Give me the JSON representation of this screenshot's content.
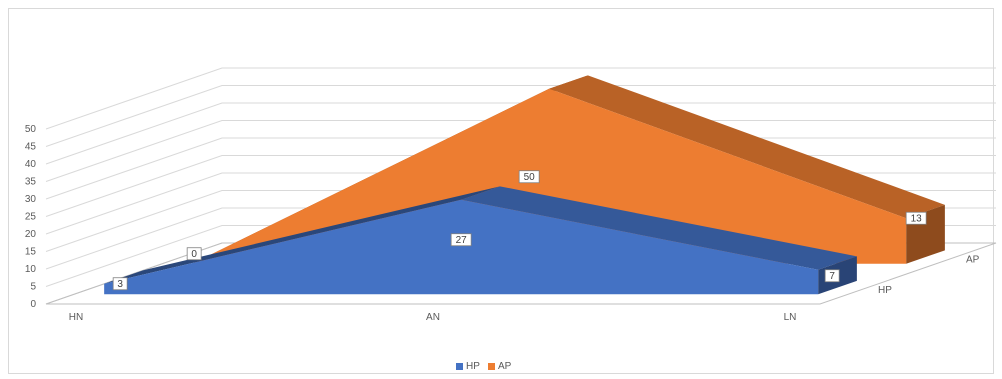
{
  "chart_data": {
    "type": "area",
    "subtype": "3d-area",
    "categories": [
      "HN",
      "AN",
      "LN"
    ],
    "series": [
      {
        "name": "HP",
        "values": [
          3,
          27,
          7
        ],
        "color": "#4472C4"
      },
      {
        "name": "AP",
        "values": [
          0,
          50,
          13
        ],
        "color": "#ED7D31"
      }
    ],
    "depth_labels": [
      "HP",
      "AP"
    ],
    "y_ticks": [
      0,
      5,
      10,
      15,
      20,
      25,
      30,
      35,
      40,
      45,
      50
    ],
    "ylim": [
      0,
      50
    ],
    "grid": true,
    "legend": "bottom",
    "data_labels": true
  }
}
